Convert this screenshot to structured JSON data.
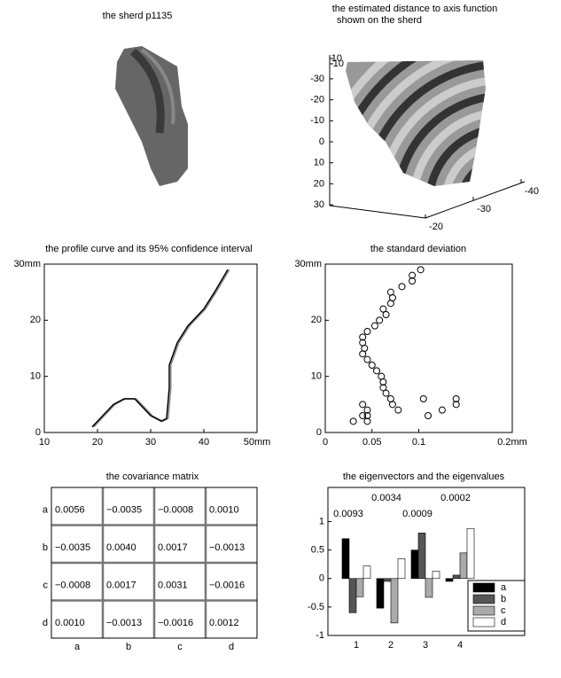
{
  "chart_data": [
    {
      "type": "image",
      "title": "the sherd p1135"
    },
    {
      "type": "surface3d",
      "title": "the estimated distance to axis function",
      "subtitle": "shown on the sherd",
      "xticks": [
        -20,
        -30,
        -40
      ],
      "yticks": [
        -30,
        -20,
        -10,
        0,
        10,
        20,
        30
      ],
      "zticks": [
        10,
        -10
      ]
    },
    {
      "type": "line",
      "title": "the profile curve and its 95% confidence interval",
      "xlim": [
        10,
        50
      ],
      "xticks": [
        10,
        20,
        30,
        40,
        {
          "value": 50,
          "label": "50mm"
        }
      ],
      "ylim": [
        0,
        30
      ],
      "yticks": [
        0,
        10,
        20,
        {
          "value": 30,
          "label": "30mm"
        }
      ],
      "series": [
        {
          "color": "#888888",
          "x": [
            19.3,
            21.3,
            23.3,
            25.3,
            27.3,
            28.3,
            30.3,
            32.3,
            33.3,
            33.8,
            33.8,
            35.3,
            37.3,
            40.3,
            42.3,
            44.8
          ],
          "values": [
            1,
            3,
            5,
            6,
            6,
            5,
            3,
            2,
            2.5,
            8,
            12,
            16,
            19,
            22,
            25,
            29
          ]
        },
        {
          "color": "#000000",
          "x": [
            19,
            21,
            23,
            25,
            27,
            28,
            30,
            32,
            33,
            33.5,
            33.5,
            35,
            37,
            40,
            42,
            44.5
          ],
          "values": [
            1,
            3,
            5,
            6,
            6,
            5,
            3,
            2,
            2.5,
            8,
            12,
            16,
            19,
            22,
            25,
            29
          ]
        }
      ]
    },
    {
      "type": "scatter",
      "title": "the standard deviation",
      "xlim": [
        0,
        0.2
      ],
      "xticks": [
        0,
        0.05,
        0.1,
        {
          "value": 0.2,
          "label": "0.2mm"
        }
      ],
      "ylim": [
        0,
        30
      ],
      "yticks": [
        0,
        10,
        20,
        {
          "value": 30,
          "label": "30mm"
        }
      ],
      "color": "#000000",
      "x": [
        0.102,
        0.093,
        0.093,
        0.082,
        0.07,
        0.072,
        0.07,
        0.062,
        0.065,
        0.058,
        0.053,
        0.045,
        0.04,
        0.04,
        0.042,
        0.04,
        0.045,
        0.05,
        0.055,
        0.06,
        0.062,
        0.062,
        0.065,
        0.07,
        0.072,
        0.078,
        0.105,
        0.11,
        0.125,
        0.14,
        0.14,
        0.04,
        0.04,
        0.045,
        0.045,
        0.03,
        0.045
      ],
      "values": [
        29,
        27,
        28,
        26,
        25,
        24,
        23,
        22,
        21,
        20,
        19,
        18,
        17,
        16,
        15,
        14,
        13,
        12,
        11,
        10,
        9,
        8,
        7,
        6,
        5,
        4,
        6,
        3,
        4,
        6,
        5,
        5,
        3,
        3,
        2,
        2,
        4
      ]
    },
    {
      "type": "matrix",
      "title": "the covariance matrix",
      "rows": [
        "a",
        "b",
        "c",
        "d"
      ],
      "columns": [
        "a",
        "b",
        "c",
        "d"
      ],
      "cells": [
        [
          "0.0056",
          "−0.0035",
          "−0.0008",
          "0.0010"
        ],
        [
          "−0.0035",
          "0.0040",
          "0.0017",
          "−0.0013"
        ],
        [
          "−0.0008",
          "0.0017",
          "0.0031",
          "−0.0016"
        ],
        [
          "0.0010",
          "−0.0013",
          "−0.0016",
          "0.0012"
        ]
      ]
    },
    {
      "type": "bar",
      "title": "the eigenvectors and the eigenvalues",
      "categories": [
        "1",
        "2",
        "3",
        "4"
      ],
      "eigenvalues": [
        0.0093,
        0.0034,
        0.0009,
        0.0002
      ],
      "ylim": [
        -1,
        1.6
      ],
      "yticks": [
        -1,
        -0.5,
        0,
        0.5,
        1
      ],
      "legend": "lower right",
      "series": [
        {
          "name": "a",
          "color": "#000000",
          "values": [
            0.7,
            -0.52,
            0.5,
            -0.05
          ]
        },
        {
          "name": "b",
          "color": "#555555",
          "values": [
            -0.6,
            -0.05,
            0.8,
            0.06
          ]
        },
        {
          "name": "c",
          "color": "#aaaaaa",
          "values": [
            -0.32,
            -0.78,
            -0.33,
            0.45
          ]
        },
        {
          "name": "d",
          "color": "#ffffff",
          "values": [
            0.22,
            0.35,
            0.13,
            0.88
          ]
        }
      ]
    }
  ]
}
